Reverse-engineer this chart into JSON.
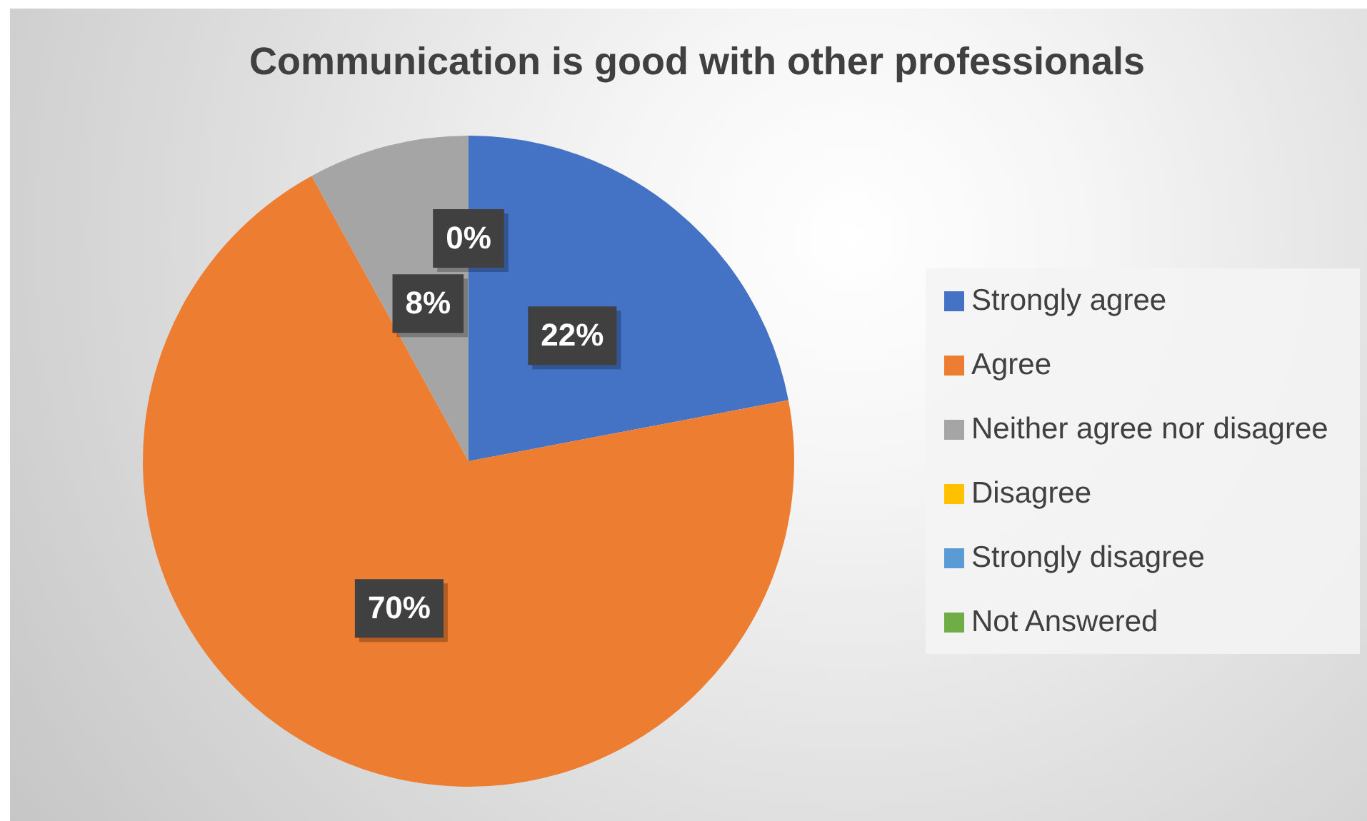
{
  "chart_data": {
    "type": "pie",
    "title": "Communication is good with other professionals",
    "categories": [
      "Strongly agree",
      "Agree",
      "Neither agree nor disagree",
      "Disagree",
      "Strongly disagree",
      "Not Answered"
    ],
    "values": [
      22,
      70,
      8,
      0,
      0,
      0
    ],
    "colors": [
      "#4472c4",
      "#ed7d31",
      "#a5a5a5",
      "#ffc000",
      "#5b9bd5",
      "#70ad47"
    ],
    "value_labels": [
      "22%",
      "70%",
      "8%",
      null,
      null,
      "0%"
    ],
    "legend": "right"
  }
}
